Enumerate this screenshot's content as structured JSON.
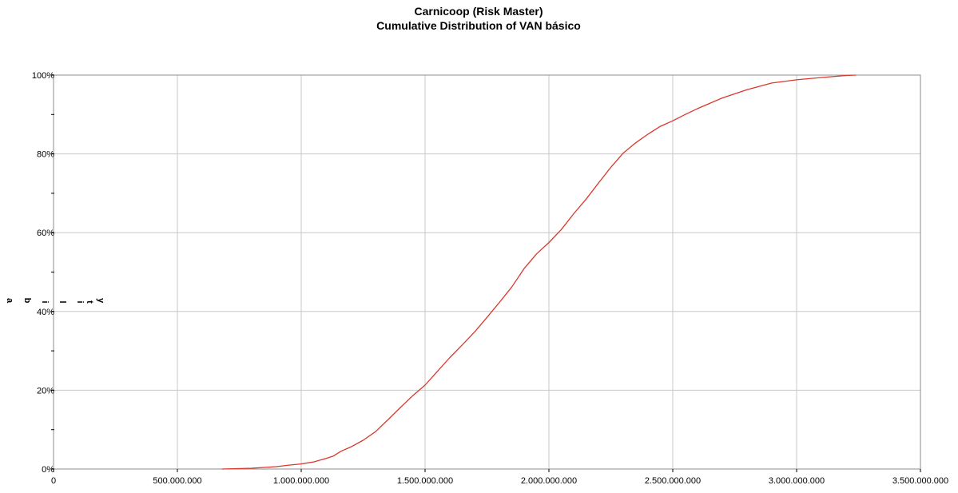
{
  "chart_data": {
    "type": "line",
    "title": "Carnicoop (Risk Master)",
    "subtitle": "Cumulative Distribution of VAN básico",
    "xlabel": "",
    "ylabel": "",
    "ylabel_fragments": [
      "a",
      "b",
      "i",
      "l",
      "i",
      "t",
      "y"
    ],
    "xlim": [
      0,
      3500000000
    ],
    "ylim": [
      0,
      100
    ],
    "x_ticks": [
      0,
      500000000,
      1000000000,
      1500000000,
      2000000000,
      2500000000,
      3000000000,
      3500000000
    ],
    "x_tick_labels": [
      "0",
      "500.000.000",
      "1.000.000.000",
      "1.500.000.000",
      "2.000.000.000",
      "2.500.000.000",
      "3.000.000.000",
      "3.500.000.000"
    ],
    "y_ticks": [
      0,
      20,
      40,
      60,
      80,
      100
    ],
    "y_tick_labels": [
      "0%",
      "20%",
      "40%",
      "60%",
      "80%",
      "100%"
    ],
    "y_minor_step": 10,
    "grid": true,
    "legend": "none",
    "line_color": "#d9382c",
    "grid_color": "#c8c8c8",
    "series": [
      {
        "x": [
          680000000,
          800000000,
          900000000,
          950000000,
          1000000000,
          1050000000,
          1100000000,
          1130000000,
          1160000000,
          1200000000,
          1250000000,
          1300000000,
          1350000000,
          1400000000,
          1450000000,
          1500000000,
          1550000000,
          1600000000,
          1650000000,
          1700000000,
          1750000000,
          1800000000,
          1850000000,
          1900000000,
          1950000000,
          2000000000,
          2050000000,
          2100000000,
          2150000000,
          2200000000,
          2250000000,
          2300000000,
          2350000000,
          2400000000,
          2450000000,
          2500000000,
          2550000000,
          2600000000,
          2700000000,
          2800000000,
          2900000000,
          3000000000,
          3100000000,
          3200000000,
          3240000000
        ],
        "y": [
          0,
          0.2,
          0.6,
          1,
          1.3,
          1.8,
          2.7,
          3.3,
          4.5,
          5.6,
          7.3,
          9.5,
          12.5,
          15.6,
          18.6,
          21.3,
          24.8,
          28.3,
          31.5,
          34.8,
          38.5,
          42.3,
          46.2,
          50.9,
          54.6,
          57.5,
          60.8,
          64.8,
          68.5,
          72.6,
          76.6,
          80.2,
          82.8,
          85,
          87,
          88.4,
          90,
          91.5,
          94.2,
          96.3,
          98,
          98.8,
          99.4,
          99.9,
          100
        ]
      }
    ]
  }
}
